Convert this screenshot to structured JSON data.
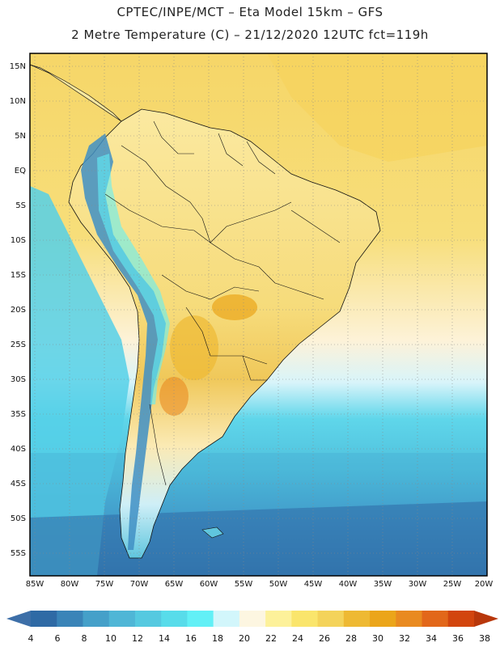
{
  "header": {
    "line1": "CPTEC/INPE/MCT –  Eta Model 15km – GFS",
    "line2": "2 Metre Temperature (C) – 21/12/2020 12UTC fct=119h"
  },
  "map": {
    "lat_labels": [
      "15N",
      "10N",
      "5N",
      "EQ",
      "5S",
      "10S",
      "15S",
      "20S",
      "25S",
      "30S",
      "35S",
      "40S",
      "45S",
      "50S",
      "55S"
    ],
    "lon_labels": [
      "85W",
      "80W",
      "75W",
      "70W",
      "65W",
      "60W",
      "55W",
      "50W",
      "45W",
      "40W",
      "35W",
      "30W",
      "25W",
      "20W"
    ]
  },
  "colorbar": {
    "labels": [
      "4",
      "6",
      "8",
      "10",
      "12",
      "14",
      "16",
      "18",
      "20",
      "22",
      "24",
      "26",
      "28",
      "30",
      "32",
      "34",
      "36",
      "38"
    ],
    "colors": [
      "#2f6aa5",
      "#3a84b8",
      "#45a0c9",
      "#4fb6d6",
      "#55c9e0",
      "#58dcea",
      "#62f0f6",
      "#d2f6fb",
      "#fdf6e1",
      "#fdf19a",
      "#fae56c",
      "#f4d35a",
      "#eeb933",
      "#eba51a",
      "#e98a20",
      "#e2671a",
      "#d2450e",
      "#b8370b"
    ]
  }
}
